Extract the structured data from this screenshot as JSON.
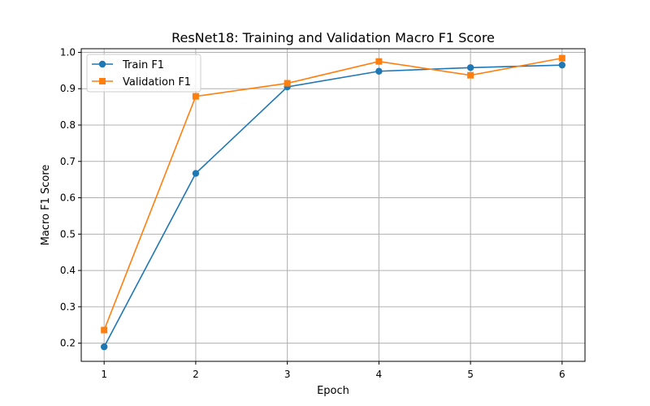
{
  "chart_data": {
    "type": "line",
    "title": "ResNet18: Training and Validation Macro F1 Score",
    "xlabel": "Epoch",
    "ylabel": "Macro F1 Score",
    "x": [
      1,
      2,
      3,
      4,
      5,
      6
    ],
    "xticks": [
      "1",
      "2",
      "3",
      "4",
      "5",
      "6"
    ],
    "yticks": [
      "0.2",
      "0.3",
      "0.4",
      "0.5",
      "0.6",
      "0.7",
      "0.8",
      "0.9",
      "1.0"
    ],
    "xlim": [
      0.75,
      6.25
    ],
    "ylim": [
      0.15,
      1.01
    ],
    "grid": true,
    "legend_position": "top-left",
    "series": [
      {
        "name": "Train F1",
        "values": [
          0.19,
          0.667,
          0.905,
          0.948,
          0.958,
          0.965
        ],
        "color": "#1f77b4",
        "marker": "circle"
      },
      {
        "name": "Validation F1",
        "values": [
          0.236,
          0.879,
          0.915,
          0.975,
          0.937,
          0.984
        ],
        "color": "#ff7f0e",
        "marker": "square"
      }
    ]
  }
}
